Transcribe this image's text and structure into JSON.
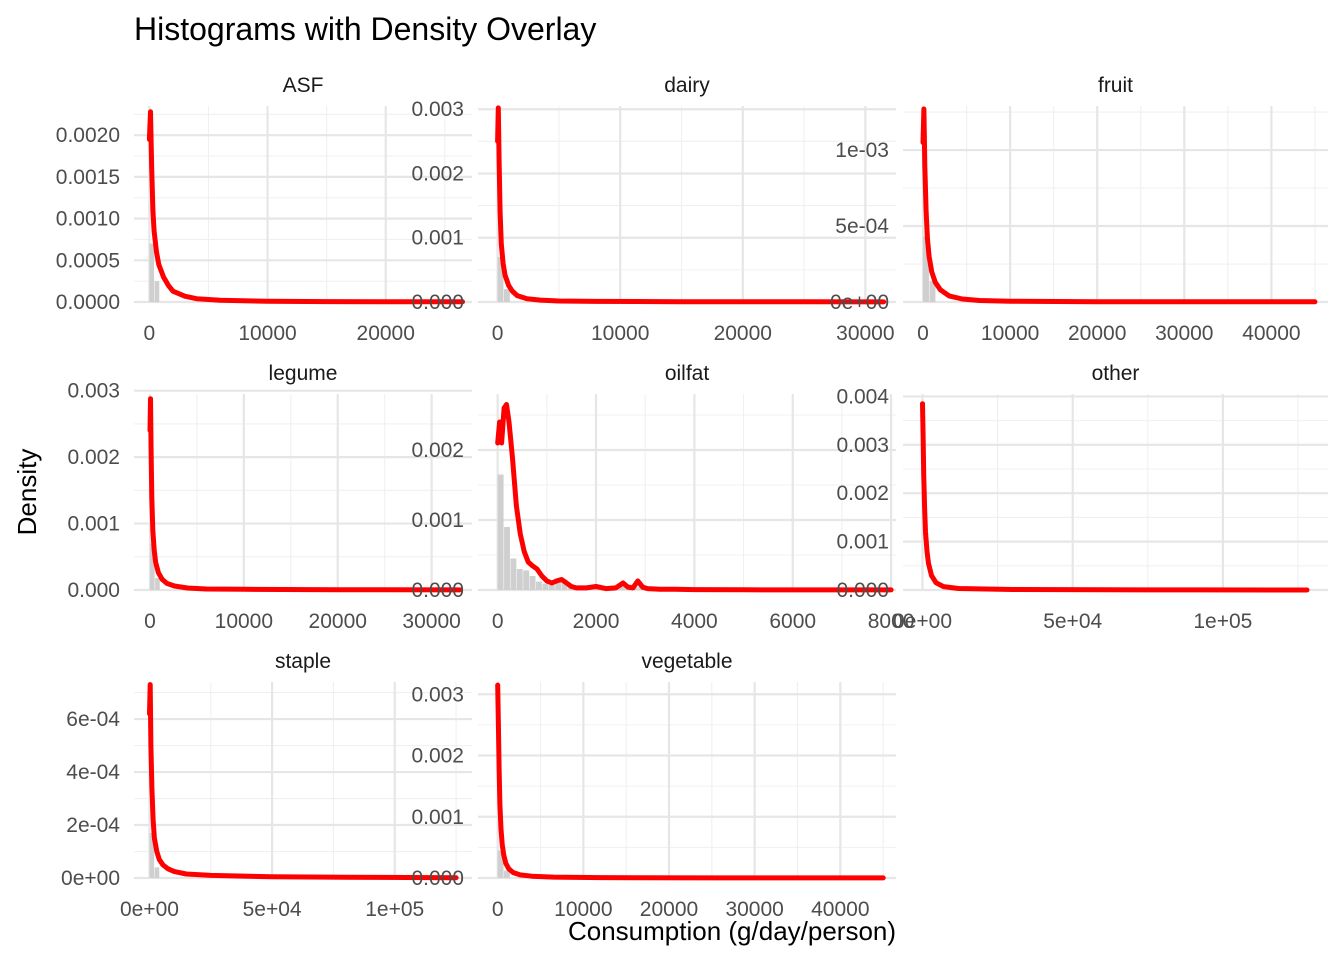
{
  "chart_data": {
    "type": "histogram-density-facets",
    "title": "Histograms with Density Overlay",
    "xlabel": "Consumption (g/day/person)",
    "ylabel": "Density",
    "histogram_color": "#cfcfcf",
    "density_color": "#ff0000",
    "grid": true,
    "panels": [
      {
        "name": "ASF",
        "xlim": [
          -1300,
          27300
        ],
        "ylim": [
          0,
          0.00235
        ],
        "x_ticks": [
          0,
          10000,
          20000
        ],
        "x_tick_labels": [
          "0",
          "10000",
          "20000"
        ],
        "y_ticks": [
          0,
          0.0005,
          0.001,
          0.0015,
          0.002
        ],
        "y_tick_labels": [
          "0.0000",
          "0.0005",
          "0.0010",
          "0.0015",
          "0.0020"
        ],
        "hist_x": [
          0,
          440
        ],
        "hist_y": [
          0.0007,
          0.00025
        ],
        "bin_width": 440,
        "density_x": [
          0,
          100,
          200,
          300,
          400,
          600,
          800,
          1200,
          1600,
          2000,
          3000,
          4000,
          6000,
          10000,
          15000,
          20000,
          26500
        ],
        "density_y": [
          0.00195,
          0.00228,
          0.0016,
          0.0011,
          0.00085,
          0.0006,
          0.00045,
          0.0003,
          0.0002,
          0.00013,
          7e-05,
          4e-05,
          2e-05,
          1e-05,
          5e-06,
          3e-06,
          2e-06
        ]
      },
      {
        "name": "dairy",
        "xlim": [
          -1600,
          32500
        ],
        "ylim": [
          0,
          0.00305
        ],
        "x_ticks": [
          0,
          10000,
          20000,
          30000
        ],
        "x_tick_labels": [
          "0",
          "10000",
          "20000",
          "30000"
        ],
        "y_ticks": [
          0,
          0.001,
          0.002,
          0.003
        ],
        "y_tick_labels": [
          "0.000",
          "0.001",
          "0.002",
          "0.003"
        ],
        "hist_x": [
          0,
          520
        ],
        "hist_y": [
          0.0007,
          0.0002
        ],
        "bin_width": 520,
        "density_x": [
          0,
          60,
          120,
          200,
          300,
          450,
          600,
          900,
          1200,
          1600,
          2400,
          3500,
          5000,
          8000,
          15000,
          25000,
          31500
        ],
        "density_y": [
          0.0025,
          0.00302,
          0.0022,
          0.0014,
          0.0009,
          0.0006,
          0.00042,
          0.00026,
          0.00017,
          0.0001,
          5e-05,
          3e-05,
          1.5e-05,
          1e-05,
          5e-06,
          3e-06,
          2e-06
        ]
      },
      {
        "name": "fruit",
        "xlim": [
          -2300,
          46500
        ],
        "ylim": [
          0,
          0.00129
        ],
        "x_ticks": [
          0,
          10000,
          20000,
          30000,
          40000
        ],
        "x_tick_labels": [
          "0",
          "10000",
          "20000",
          "30000",
          "40000"
        ],
        "y_ticks": [
          0,
          0.0005,
          0.001
        ],
        "y_tick_labels": [
          "0e+00",
          "5e-04",
          "1e-03"
        ],
        "hist_x": [
          0,
          740
        ],
        "hist_y": [
          0.00043,
          0.00014
        ],
        "bin_width": 740,
        "density_x": [
          0,
          100,
          200,
          350,
          500,
          700,
          1000,
          1400,
          2000,
          3000,
          4500,
          6500,
          10000,
          20000,
          30000,
          45000
        ],
        "density_y": [
          0.00105,
          0.00127,
          0.0009,
          0.0006,
          0.00042,
          0.0003,
          0.0002,
          0.00013,
          8e-05,
          4e-05,
          2e-05,
          1e-05,
          5e-06,
          2e-06,
          1e-06,
          1e-06
        ]
      },
      {
        "name": "legume",
        "xlim": [
          -1700,
          34300
        ],
        "ylim": [
          0,
          0.00295
        ],
        "x_ticks": [
          0,
          10000,
          20000,
          30000
        ],
        "x_tick_labels": [
          "0",
          "10000",
          "20000",
          "30000"
        ],
        "y_ticks": [
          0,
          0.001,
          0.002,
          0.003
        ],
        "y_tick_labels": [
          "0.000",
          "0.001",
          "0.002",
          "0.003"
        ],
        "hist_x": [
          0,
          550
        ],
        "hist_y": [
          0.0007,
          0.00018
        ],
        "bin_width": 550,
        "density_x": [
          0,
          60,
          120,
          200,
          300,
          450,
          600,
          900,
          1300,
          1800,
          2600,
          4000,
          6000,
          10000,
          20000,
          33000
        ],
        "density_y": [
          0.0024,
          0.00288,
          0.0021,
          0.0014,
          0.0009,
          0.0006,
          0.00042,
          0.00026,
          0.00016,
          0.0001,
          6e-05,
          3e-05,
          1.5e-05,
          1e-05,
          5e-06,
          2e-06
        ]
      },
      {
        "name": "oilfat",
        "xlim": [
          -400,
          8100
        ],
        "ylim": [
          0,
          0.0028
        ],
        "x_ticks": [
          0,
          2000,
          4000,
          6000,
          8000
        ],
        "x_tick_labels": [
          "0",
          "2000",
          "4000",
          "6000",
          "8000"
        ],
        "y_ticks": [
          0,
          0.001,
          0.002
        ],
        "y_tick_labels": [
          "0.000",
          "0.001",
          "0.002"
        ],
        "hist_x": [
          0,
          130,
          260,
          390,
          520,
          650,
          780,
          910,
          1040,
          1170,
          1300,
          1430,
          1560,
          1690,
          1820,
          1950,
          2080,
          2210,
          2340,
          2470,
          2600,
          2730,
          2860,
          2990
        ],
        "hist_y": [
          0.00165,
          0.0009,
          0.00045,
          0.0003,
          0.00028,
          0.0002,
          0.00012,
          9e-05,
          7e-05,
          0.00012,
          0.00015,
          8e-05,
          3e-05,
          2e-05,
          3e-05,
          4e-05,
          3e-05,
          1e-05,
          2e-05,
          5e-05,
          8e-05,
          4e-05,
          8e-05,
          2e-05
        ],
        "bin_width": 130,
        "density_x": [
          0,
          40,
          80,
          130,
          180,
          230,
          300,
          380,
          460,
          540,
          620,
          700,
          800,
          900,
          1000,
          1100,
          1200,
          1300,
          1400,
          1500,
          1600,
          1800,
          2000,
          2200,
          2400,
          2550,
          2650,
          2750,
          2850,
          2950,
          3050,
          3300,
          3600,
          4000,
          5000,
          6000,
          7000,
          8000
        ],
        "density_y": [
          0.0021,
          0.0024,
          0.0021,
          0.0026,
          0.00265,
          0.0024,
          0.0019,
          0.0012,
          0.0008,
          0.00055,
          0.0004,
          0.00035,
          0.0003,
          0.0002,
          0.00013,
          0.0001,
          0.00013,
          0.00015,
          0.0001,
          5e-05,
          3e-05,
          3e-05,
          5e-05,
          2e-05,
          3e-05,
          0.0001,
          4e-05,
          3e-05,
          0.00013,
          4e-05,
          2e-05,
          1e-05,
          1e-05,
          5e-06,
          3e-06,
          2e-06,
          1e-06,
          1e-06
        ]
      },
      {
        "name": "other",
        "xlim": [
          -6500,
          135000
        ],
        "ylim": [
          0,
          0.00405
        ],
        "x_ticks": [
          0,
          50000,
          100000
        ],
        "x_tick_labels": [
          "0e+00",
          "5e+04",
          "1e+05"
        ],
        "y_ticks": [
          0,
          0.001,
          0.002,
          0.003,
          0.004
        ],
        "y_tick_labels": [
          "0.000",
          "0.001",
          "0.002",
          "0.003",
          "0.004"
        ],
        "hist_x": [],
        "hist_y": [],
        "bin_width": 2000,
        "density_x": [
          0,
          200,
          400,
          700,
          1000,
          1500,
          2000,
          3000,
          4500,
          7000,
          12000,
          30000,
          60000,
          90000,
          128000
        ],
        "density_y": [
          0.00385,
          0.0032,
          0.0024,
          0.0017,
          0.0012,
          0.0008,
          0.00055,
          0.0003,
          0.00015,
          7e-05,
          3e-05,
          1e-05,
          5e-06,
          2e-06,
          1e-06
        ]
      },
      {
        "name": "staple",
        "xlim": [
          -6300,
          131500
        ],
        "ylim": [
          0,
          0.00074
        ],
        "x_ticks": [
          0,
          50000,
          100000
        ],
        "x_tick_labels": [
          "0e+00",
          "5e+04",
          "1e+05"
        ],
        "y_ticks": [
          0,
          0.0002,
          0.0004,
          0.0006
        ],
        "y_tick_labels": [
          "0e+00",
          "2e-04",
          "4e-04",
          "6e-04"
        ],
        "hist_x": [
          0,
          2100
        ],
        "hist_y": [
          0.00017,
          4e-05
        ],
        "bin_width": 2100,
        "density_x": [
          0,
          300,
          600,
          1000,
          1500,
          2000,
          3000,
          4000,
          5500,
          7500,
          10000,
          15000,
          25000,
          50000,
          80000,
          125000
        ],
        "density_y": [
          0.00062,
          0.00073,
          0.0005,
          0.00034,
          0.00022,
          0.00015,
          0.0001,
          7e-05,
          5e-05,
          3.5e-05,
          2.5e-05,
          1.5e-05,
          1e-05,
          5e-06,
          3e-06,
          1e-06
        ]
      },
      {
        "name": "vegetable",
        "xlim": [
          -2300,
          46500
        ],
        "ylim": [
          0,
          0.0032
        ],
        "x_ticks": [
          0,
          10000,
          20000,
          30000,
          40000
        ],
        "x_tick_labels": [
          "0",
          "10000",
          "20000",
          "30000",
          "40000"
        ],
        "y_ticks": [
          0,
          0.001,
          0.002,
          0.003
        ],
        "y_tick_labels": [
          "0.000",
          "0.001",
          "0.002",
          "0.003"
        ],
        "hist_x": [
          0,
          740
        ],
        "hist_y": [
          0.00045,
          0.00012
        ],
        "bin_width": 740,
        "density_x": [
          0,
          80,
          160,
          260,
          380,
          520,
          700,
          950,
          1300,
          1800,
          2600,
          4000,
          6500,
          12000,
          25000,
          45000
        ],
        "density_y": [
          0.00315,
          0.0025,
          0.0018,
          0.0012,
          0.0008,
          0.00055,
          0.00038,
          0.00024,
          0.00015,
          9e-05,
          5e-05,
          3e-05,
          1.5e-05,
          6e-06,
          2e-06,
          1e-06
        ]
      }
    ]
  }
}
